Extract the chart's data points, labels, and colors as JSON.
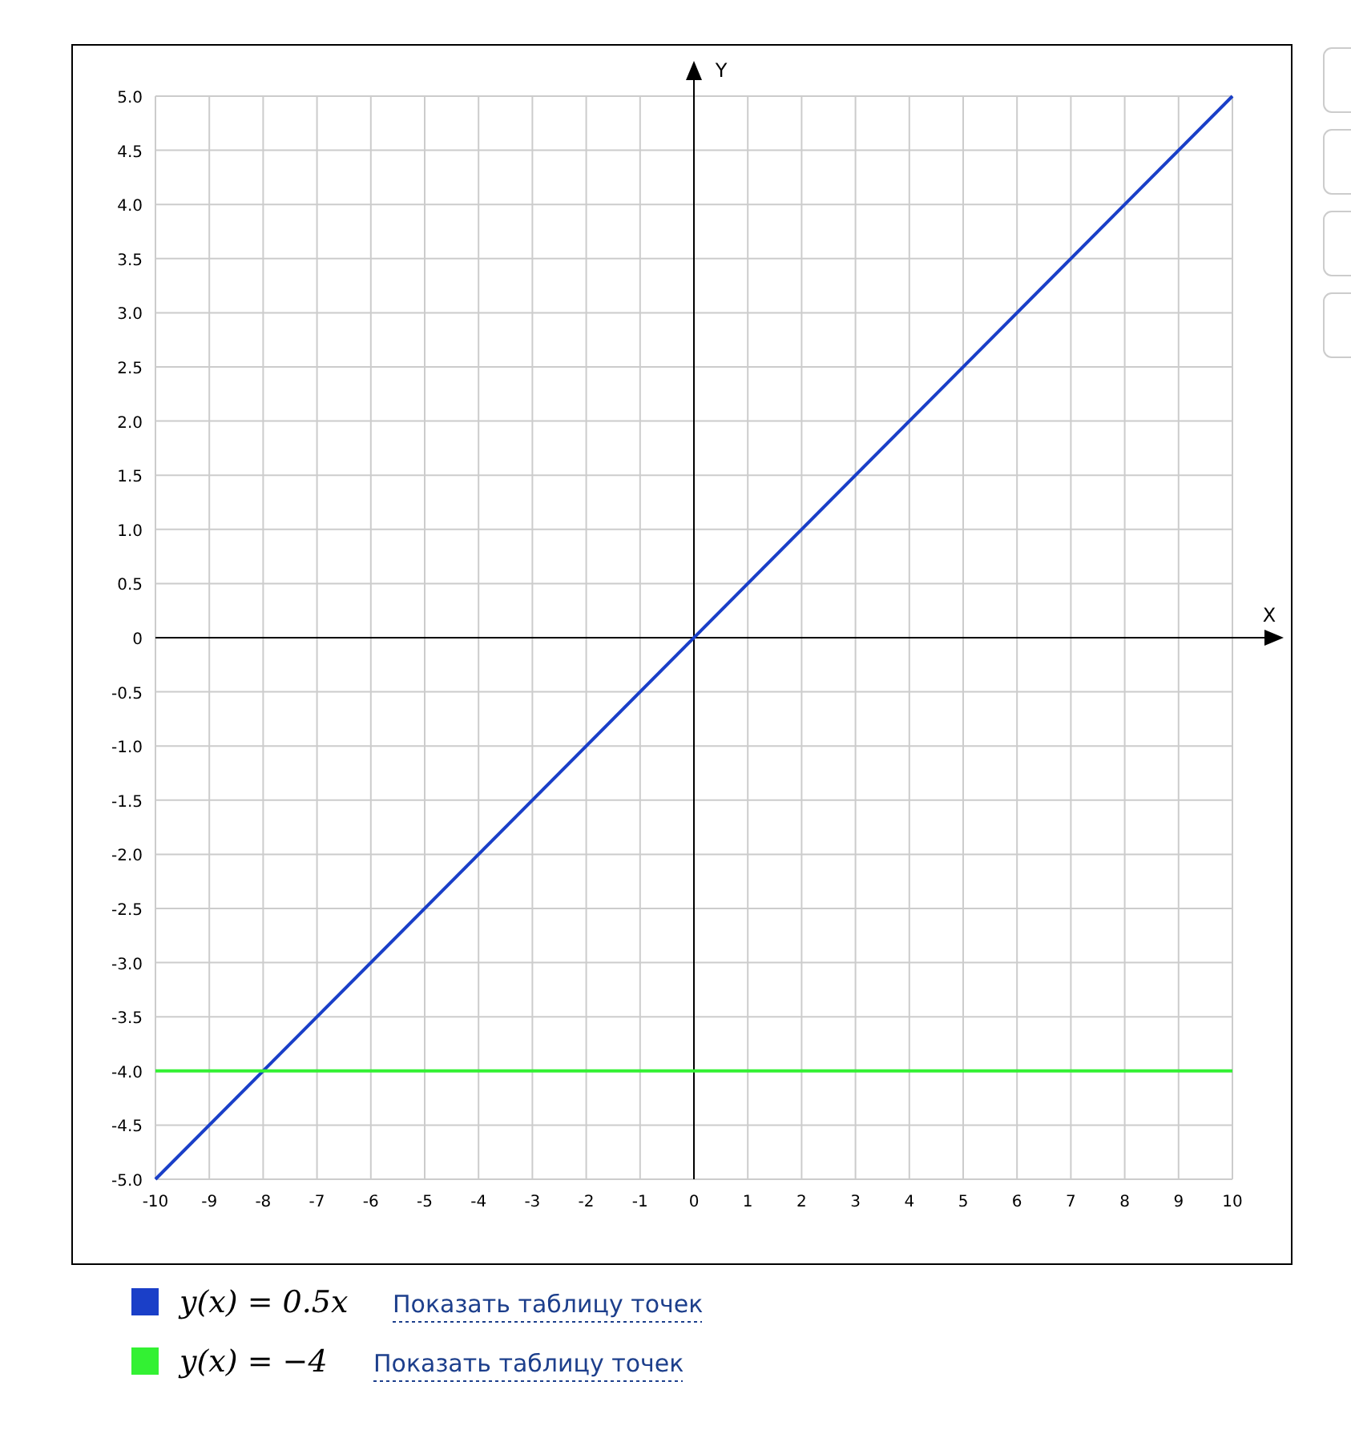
{
  "chart_data": {
    "type": "line",
    "xlabel": "X",
    "ylabel": "Y",
    "x": [
      -10,
      10
    ],
    "xlim": [
      -10,
      10
    ],
    "ylim": [
      -5,
      5
    ],
    "xticks": [
      -10,
      -9,
      -8,
      -7,
      -6,
      -5,
      -4,
      -3,
      -2,
      -1,
      0,
      1,
      2,
      3,
      4,
      5,
      6,
      7,
      8,
      9,
      10
    ],
    "yticks": [
      {
        "value": -5,
        "label": "-5.0"
      },
      {
        "value": -4.5,
        "label": "-4.5"
      },
      {
        "value": -4,
        "label": "-4.0"
      },
      {
        "value": -3.5,
        "label": "-3.5"
      },
      {
        "value": -3,
        "label": "-3.0"
      },
      {
        "value": -2.5,
        "label": "-2.5"
      },
      {
        "value": -2,
        "label": "-2.0"
      },
      {
        "value": -1.5,
        "label": "-1.5"
      },
      {
        "value": -1,
        "label": "-1.0"
      },
      {
        "value": -0.5,
        "label": "-0.5"
      },
      0,
      {
        "value": 0.5,
        "label": "0.5"
      },
      {
        "value": 1,
        "label": "1.0"
      },
      {
        "value": 1.5,
        "label": "1.5"
      },
      {
        "value": 2,
        "label": "2.0"
      },
      {
        "value": 2.5,
        "label": "2.5"
      },
      {
        "value": 3,
        "label": "3.0"
      },
      {
        "value": 3.5,
        "label": "3.5"
      },
      {
        "value": 4,
        "label": "4.0"
      },
      {
        "value": 4.5,
        "label": "4.5"
      },
      {
        "value": 5,
        "label": "5.0"
      }
    ],
    "series": [
      {
        "name": "y(x) = 0.5x",
        "color": "#1a3fc8",
        "values": [
          -5,
          5
        ]
      },
      {
        "name": "y(x) = −4",
        "color": "#33f133",
        "values": [
          -4,
          -4
        ]
      }
    ],
    "annotations": [
      "Показать таблицу точек",
      "Показать таблицу точек"
    ],
    "grid": true,
    "legend": "bottom",
    "marker": "none",
    "line_style": "solid"
  }
}
